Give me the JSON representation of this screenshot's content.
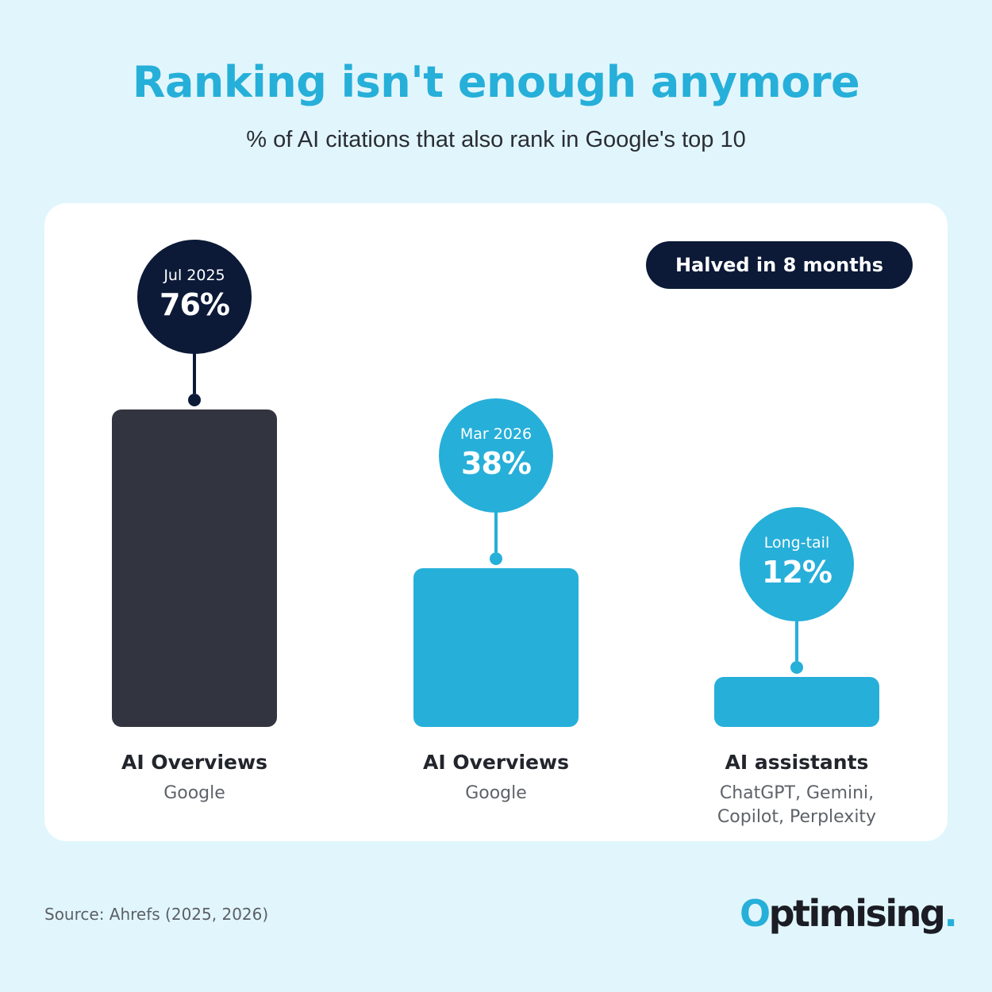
{
  "header": {
    "title": "Ranking isn't enough anymore",
    "subtitle": "% of AI citations that also rank in Google's top 10"
  },
  "badge": {
    "label": "Halved in 8 months"
  },
  "chart_data": {
    "type": "bar",
    "categories": [
      "AI Overviews",
      "AI Overviews",
      "AI assistants"
    ],
    "subcategories": [
      "Google",
      "Google",
      "ChatGPT, Gemini, Copilot, Perplexity"
    ],
    "subcategory_lines": [
      [
        "Google"
      ],
      [
        "Google"
      ],
      [
        "ChatGPT, Gemini,",
        "Copilot, Perplexity"
      ]
    ],
    "period_labels": [
      "Jul 2025",
      "Mar 2026",
      "Long-tail"
    ],
    "values": [
      76,
      38,
      12
    ],
    "value_labels": [
      "76%",
      "38%",
      "12%"
    ],
    "bar_colors": [
      "#32353f",
      "#26afd9",
      "#26afd9"
    ],
    "bubble_colors": [
      "#0c1a38",
      "#26afd9",
      "#26afd9"
    ],
    "ylim": [
      0,
      76
    ],
    "grid": false,
    "title": "Ranking isn't enough anymore",
    "ylabel": ""
  },
  "footer": {
    "source": "Source: Ahrefs (2025, 2026)",
    "logo_o": "O",
    "logo_rest": "ptimising",
    "logo_dot": "."
  }
}
